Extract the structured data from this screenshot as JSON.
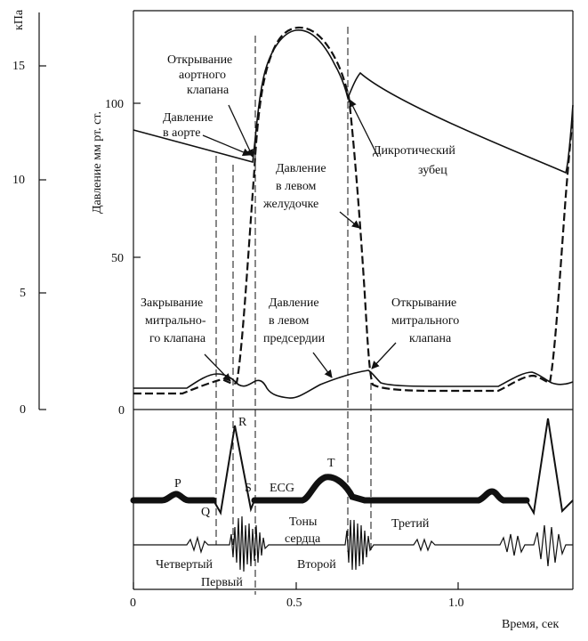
{
  "axes": {
    "kpa_label": "кПа",
    "kpa_ticks": [
      "15",
      "10",
      "5",
      "0"
    ],
    "mmhg_label": "Давление мм рт. ст.",
    "mmhg_ticks": [
      "100",
      "50",
      "0"
    ],
    "time_label": "Время, сек",
    "time_ticks": [
      "0",
      "0.5",
      "1.0"
    ]
  },
  "labels": {
    "aortic_valve_open": [
      "Открывание",
      "аортного",
      "клапана"
    ],
    "aortic_pressure": [
      "Давление",
      "в аорте"
    ],
    "dicrotic_notch": [
      "Дикротический",
      "зубец"
    ],
    "lv_pressure": [
      "Давление",
      "в левом",
      "желудочке"
    ],
    "mitral_close": [
      "Закрывание",
      "митрально-",
      "го клапана"
    ],
    "la_pressure": [
      "Давление",
      "в левом",
      "предсердии"
    ],
    "mitral_open": [
      "Открывание",
      "митрального",
      "клапана"
    ],
    "ecg": "ECG",
    "p": "P",
    "q": "Q",
    "r": "R",
    "s": "S",
    "t": "T",
    "heart_sounds": [
      "Тоны",
      "сердца"
    ],
    "fourth": "Четвертый",
    "first": "Первый",
    "second": "Второй",
    "third": "Третий"
  },
  "colors": {
    "ink": "#111111",
    "background": "#ffffff"
  }
}
